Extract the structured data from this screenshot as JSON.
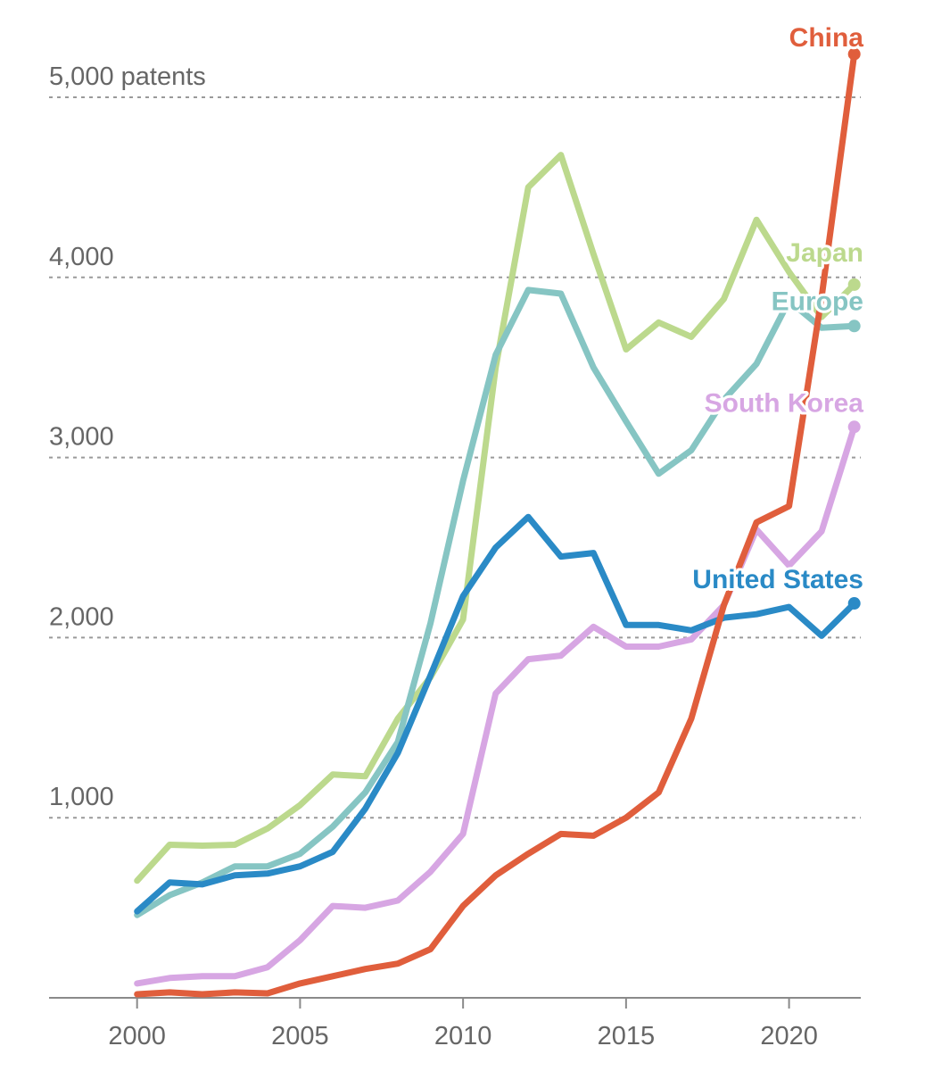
{
  "chart_data": {
    "type": "line",
    "x": [
      2000,
      2001,
      2002,
      2003,
      2004,
      2005,
      2006,
      2007,
      2008,
      2009,
      2010,
      2011,
      2012,
      2013,
      2014,
      2015,
      2016,
      2017,
      2018,
      2019,
      2020,
      2021,
      2022
    ],
    "series": [
      {
        "name": "Japan",
        "color": "#bcd98d",
        "values": [
          650,
          850,
          845,
          850,
          940,
          1070,
          1240,
          1230,
          1550,
          1780,
          2100,
          3500,
          4500,
          4680,
          4130,
          3600,
          3750,
          3670,
          3880,
          4320,
          4030,
          3780,
          3960
        ]
      },
      {
        "name": "Europe",
        "color": "#86c5c3",
        "values": [
          460,
          570,
          640,
          730,
          730,
          800,
          950,
          1140,
          1420,
          2080,
          2870,
          3570,
          3930,
          3910,
          3500,
          3200,
          2910,
          3040,
          3320,
          3520,
          3870,
          3720,
          3730
        ]
      },
      {
        "name": "South Korea",
        "color": "#d7a6e3",
        "values": [
          80,
          110,
          120,
          120,
          170,
          320,
          510,
          500,
          540,
          700,
          910,
          1690,
          1880,
          1900,
          2060,
          1950,
          1950,
          1990,
          2180,
          2600,
          2400,
          2590,
          3170
        ]
      },
      {
        "name": "United States",
        "color": "#2a8ac6",
        "values": [
          480,
          640,
          630,
          680,
          690,
          730,
          810,
          1050,
          1360,
          1790,
          2230,
          2500,
          2670,
          2450,
          2470,
          2070,
          2070,
          2040,
          2110,
          2130,
          2170,
          2010,
          2190
        ]
      },
      {
        "name": "China",
        "color": "#e05e3c",
        "values": [
          20,
          30,
          20,
          30,
          25,
          80,
          120,
          160,
          190,
          270,
          510,
          680,
          800,
          910,
          900,
          1000,
          1140,
          1550,
          2180,
          2640,
          2730,
          3890,
          5240
        ]
      }
    ],
    "y_tick_labels": [
      "5,000 patents",
      "4,000",
      "3,000",
      "2,000",
      "1,000"
    ],
    "x_tick_labels": [
      "2000",
      "2005",
      "2010",
      "2015",
      "2020"
    ],
    "xlim": [
      1997.3,
      2022.2
    ],
    "ylim": [
      0,
      5200
    ],
    "grid": true,
    "legend": "direct labels at line ends"
  }
}
